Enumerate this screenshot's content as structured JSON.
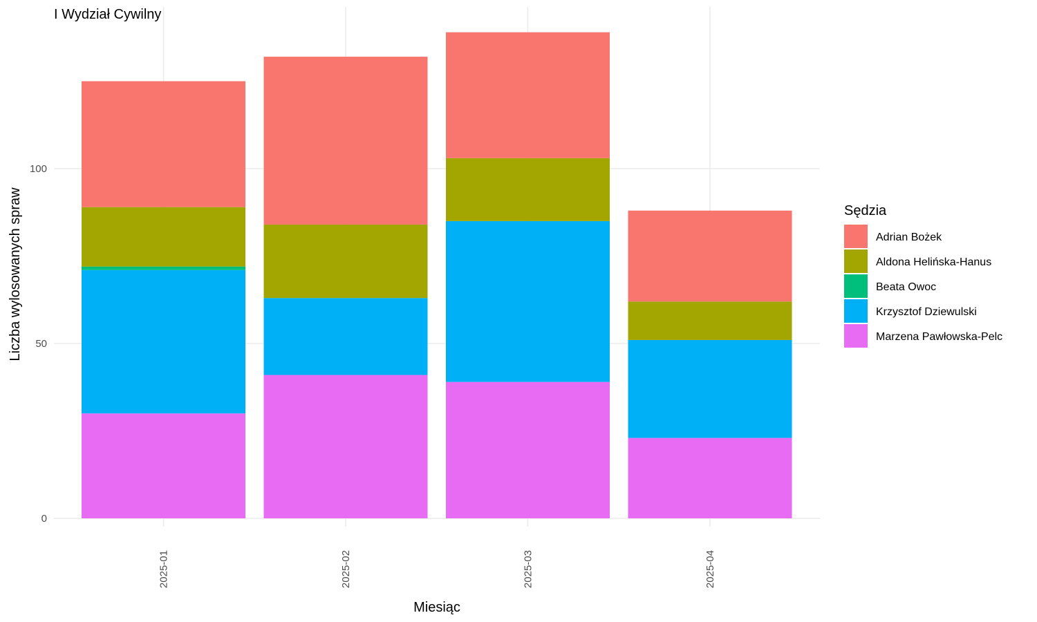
{
  "chart_data": {
    "type": "bar",
    "stacked": true,
    "title": "I Wydział Cywilny",
    "xlabel": "Miesiąc",
    "ylabel": "Liczba wylosowanych spraw",
    "ylim": [
      0,
      140
    ],
    "yticks": [
      0,
      50,
      100
    ],
    "grid": true,
    "legend_title": "Sędzia",
    "legend_position": "right",
    "categories": [
      "2025-01",
      "2025-02",
      "2025-03",
      "2025-04"
    ],
    "series": [
      {
        "name": "Adrian Bożek",
        "color": "#F8766D",
        "values": [
          36,
          48,
          36,
          26
        ]
      },
      {
        "name": "Aldona Helińska-Hanus",
        "color": "#A3A500",
        "values": [
          17,
          21,
          18,
          11
        ]
      },
      {
        "name": "Beata Owoc",
        "color": "#00BF7D",
        "values": [
          1,
          0,
          0,
          0
        ]
      },
      {
        "name": "Krzysztof Dziewulski",
        "color": "#00B0F6",
        "values": [
          41,
          22,
          46,
          28
        ]
      },
      {
        "name": "Marzena Pawłowska-Pelc",
        "color": "#E76BF3",
        "values": [
          30,
          41,
          39,
          23
        ]
      }
    ]
  }
}
